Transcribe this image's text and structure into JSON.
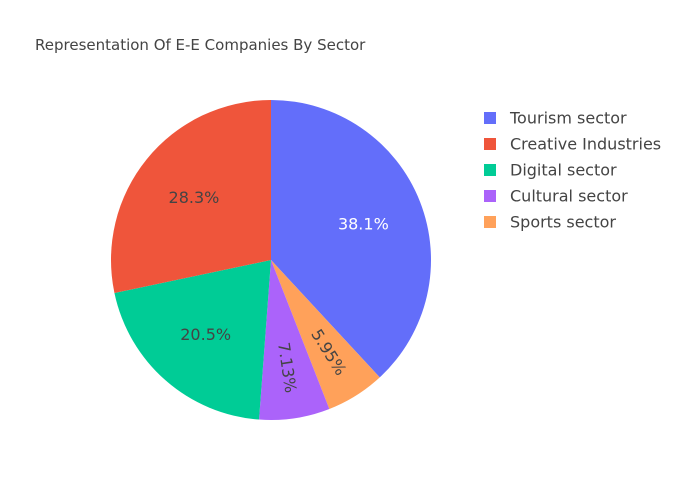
{
  "chart_data": {
    "type": "pie",
    "title": "Representation Of E-E Companies By Sector",
    "legend_position": "right",
    "slices": [
      {
        "label": "Tourism sector",
        "value": 38.1,
        "display": "38.1%",
        "color": "#636efa",
        "label_color": "#ffffff"
      },
      {
        "label": "Sports sector",
        "value": 5.95,
        "display": "5.95%",
        "color": "#ffa15a",
        "label_color": "#444444",
        "radial_label": true
      },
      {
        "label": "Cultural sector",
        "value": 7.13,
        "display": "7.13%",
        "color": "#ab63fa",
        "label_color": "#444444",
        "radial_label": true
      },
      {
        "label": "Digital sector",
        "value": 20.5,
        "display": "20.5%",
        "color": "#00cc96",
        "label_color": "#444444"
      },
      {
        "label": "Creative Industries",
        "value": 28.3,
        "display": "28.3%",
        "color": "#ef553b",
        "label_color": "#444444"
      }
    ],
    "legend_order": [
      "Tourism sector",
      "Creative Industries",
      "Digital sector",
      "Cultural sector",
      "Sports sector"
    ]
  }
}
